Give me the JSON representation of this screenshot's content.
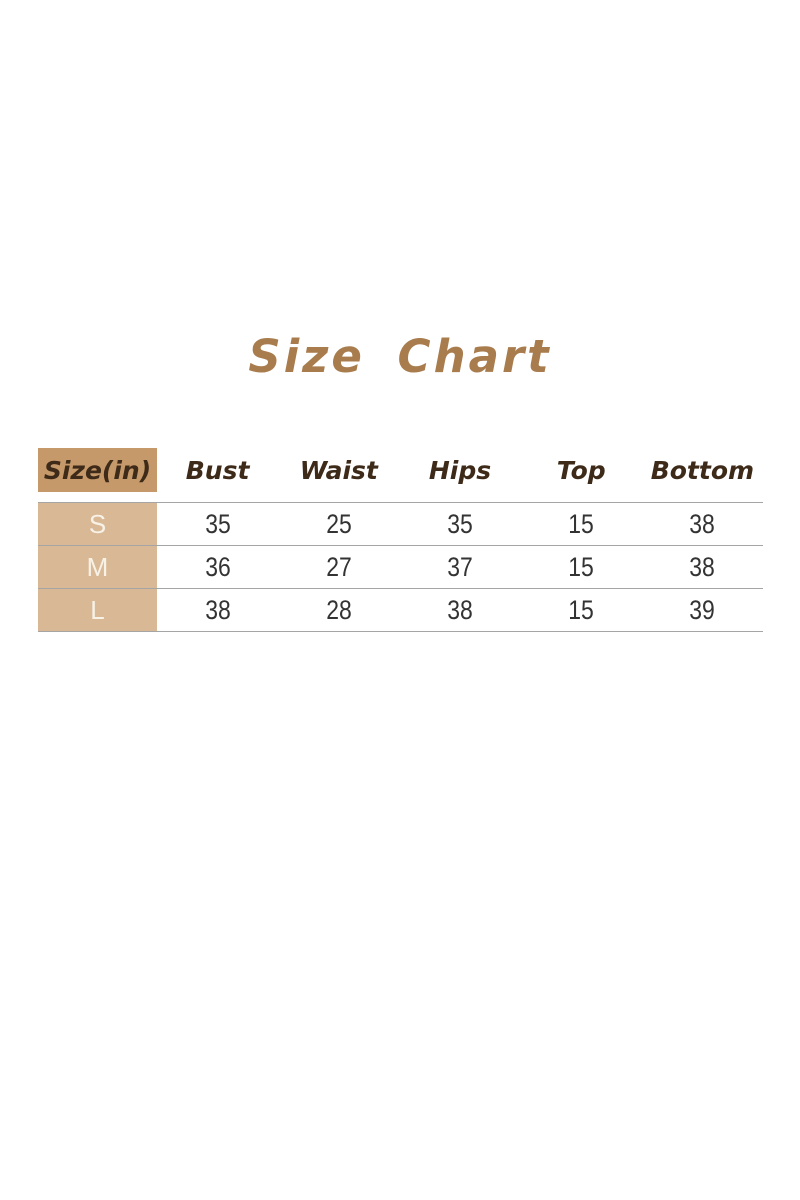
{
  "title": "Size Chart",
  "colors": {
    "title_text": "#a87c4c",
    "header_cell_bg": "#c6996a",
    "size_column_bg": "#d9b896",
    "header_text": "#3e2a18",
    "value_text": "#333333",
    "size_letter_text": "#f7f1e6",
    "row_line": "#a5a5a5",
    "page_bg": "#ffffff"
  },
  "chart_data": {
    "type": "table",
    "title": "Size Chart",
    "unit": "inches",
    "columns": [
      "Size(in)",
      "Bust",
      "Waist",
      "Hips",
      "Top",
      "Bottom"
    ],
    "rows": [
      {
        "size": "S",
        "values": [
          "35",
          "25",
          "35",
          "15",
          "38"
        ]
      },
      {
        "size": "M",
        "values": [
          "36",
          "27",
          "37",
          "15",
          "38"
        ]
      },
      {
        "size": "L",
        "values": [
          "38",
          "28",
          "38",
          "15",
          "39"
        ]
      }
    ]
  }
}
